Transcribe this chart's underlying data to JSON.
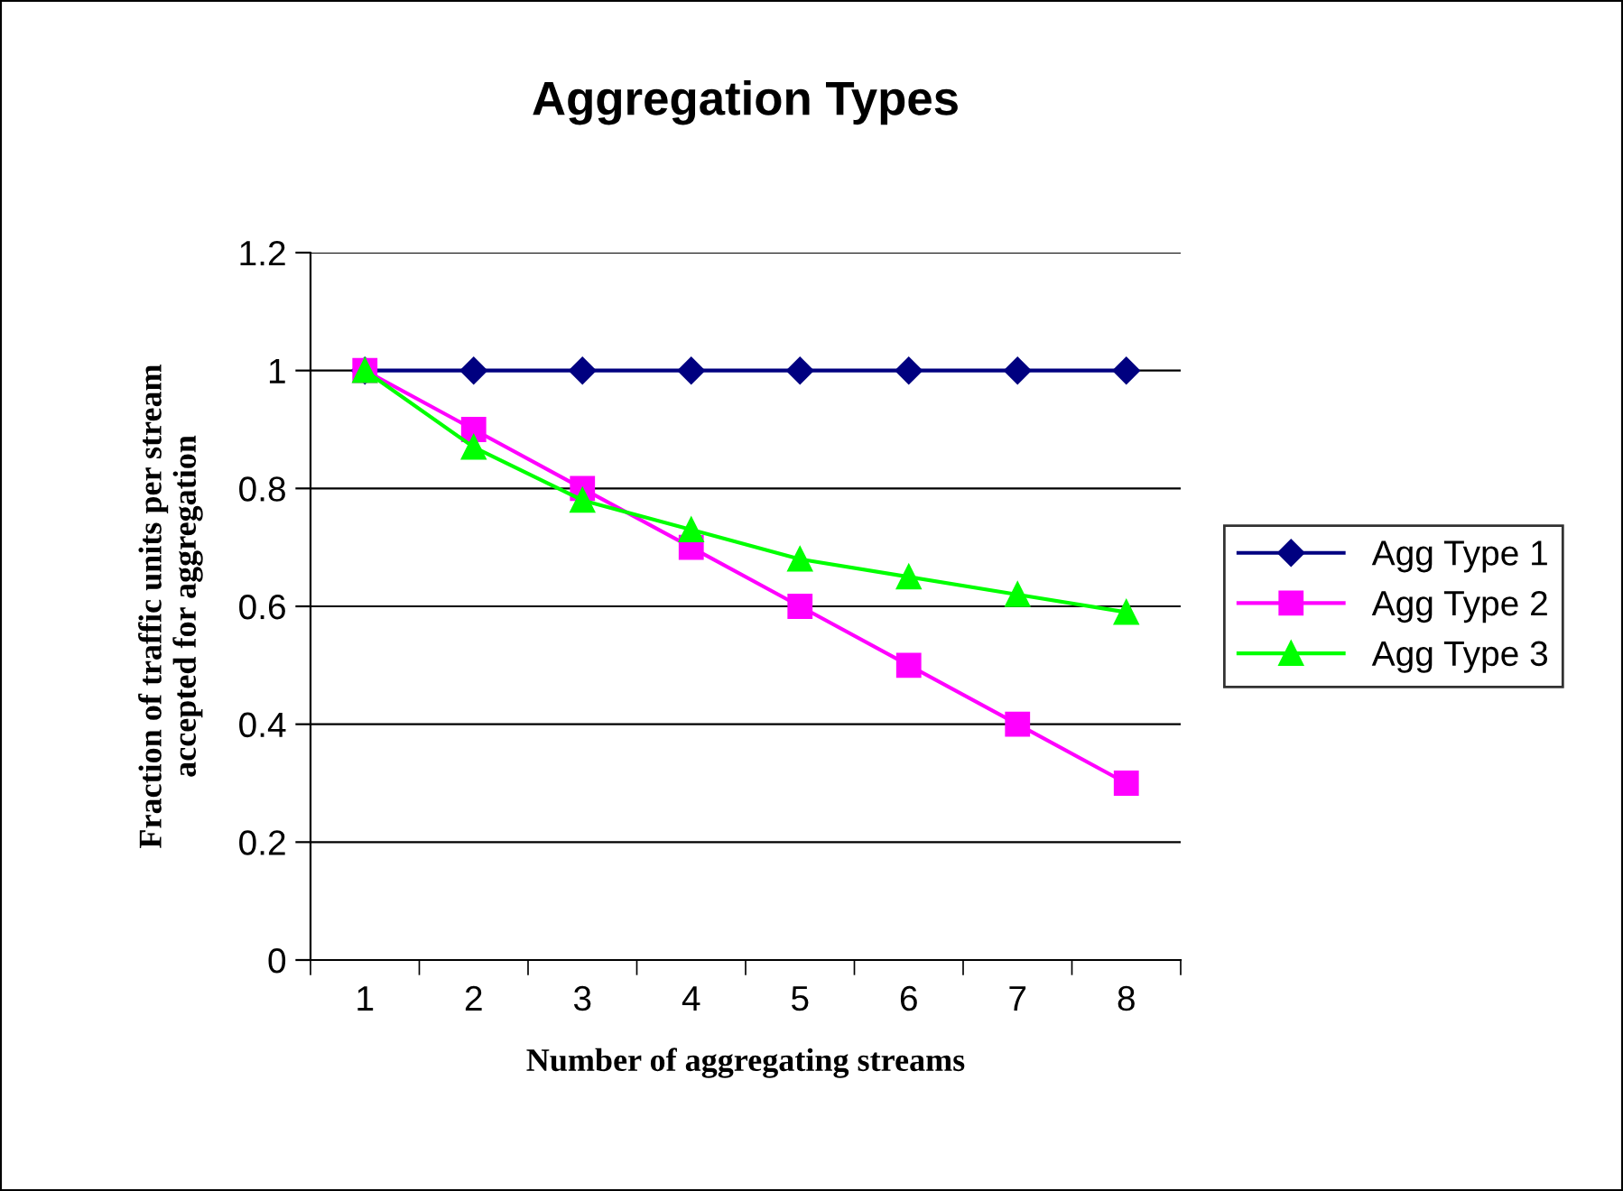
{
  "chart_data": {
    "type": "line",
    "title": "Aggregation Types",
    "xlabel": "Number of aggregating streams",
    "ylabel": "Fraction of traffic units per stream\naccepted for aggregation",
    "categories": [
      "1",
      "2",
      "3",
      "4",
      "5",
      "6",
      "7",
      "8"
    ],
    "series": [
      {
        "name": "Agg Type 1",
        "color": "#000080",
        "marker": "diamond",
        "values": [
          1,
          1,
          1,
          1,
          1,
          1,
          1,
          1
        ]
      },
      {
        "name": "Agg Type 2",
        "color": "#ff00ff",
        "marker": "square",
        "values": [
          1,
          0.9,
          0.8,
          0.7,
          0.6,
          0.5,
          0.4,
          0.3
        ]
      },
      {
        "name": "Agg Type 3",
        "color": "#00ff00",
        "marker": "triangle",
        "values": [
          1,
          0.87,
          0.78,
          0.73,
          0.68,
          0.65,
          0.62,
          0.59
        ]
      }
    ],
    "ylim": [
      0,
      1.2
    ],
    "yticks": [
      0,
      0.2,
      0.4,
      0.6,
      0.8,
      1,
      1.2
    ],
    "grid": "y",
    "legend": "right",
    "line_style": "solid"
  }
}
